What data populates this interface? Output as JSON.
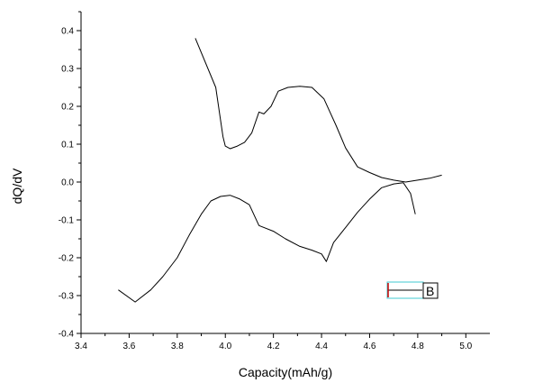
{
  "chart_data": {
    "type": "line",
    "xlabel": "Capacity(mAh/g)",
    "ylabel": "dQ/dV",
    "xlim": [
      3.4,
      5.1
    ],
    "ylim": [
      -0.4,
      0.45
    ],
    "x_ticks": [
      3.4,
      3.6,
      3.8,
      4.0,
      4.2,
      4.4,
      4.6,
      4.8,
      5.0
    ],
    "y_ticks": [
      -0.4,
      -0.3,
      -0.2,
      -0.1,
      0.0,
      0.1,
      0.2,
      0.3,
      0.4
    ],
    "x_tick_labels": [
      "3.4",
      "3.6",
      "3.8",
      "4.0",
      "4.2",
      "4.4",
      "4.6",
      "4.8",
      "5.0"
    ],
    "y_tick_labels": [
      "-0.4",
      "-0.3",
      "-0.2",
      "-0.1",
      "0.0",
      "0.1",
      "0.2",
      "0.3",
      "0.4"
    ],
    "grid": false,
    "legend": {
      "position": "bottom-right",
      "label": "B"
    },
    "colors": {
      "line": "#000000",
      "legend_box": "#40c8d0",
      "legend_marker": "#cc0000"
    },
    "series": [
      {
        "name": "B",
        "points": [
          [
            3.875,
            0.38
          ],
          [
            3.96,
            0.25
          ],
          [
            3.99,
            0.12
          ],
          [
            4.0,
            0.095
          ],
          [
            4.02,
            0.088
          ],
          [
            4.05,
            0.095
          ],
          [
            4.08,
            0.105
          ],
          [
            4.11,
            0.13
          ],
          [
            4.14,
            0.185
          ],
          [
            4.16,
            0.18
          ],
          [
            4.19,
            0.2
          ],
          [
            4.22,
            0.24
          ],
          [
            4.26,
            0.25
          ],
          [
            4.31,
            0.253
          ],
          [
            4.36,
            0.25
          ],
          [
            4.41,
            0.22
          ],
          [
            4.46,
            0.15
          ],
          [
            4.5,
            0.09
          ],
          [
            4.55,
            0.04
          ],
          [
            4.6,
            0.025
          ],
          [
            4.65,
            0.012
          ],
          [
            4.7,
            0.005
          ],
          [
            4.75,
            0.0
          ],
          [
            4.8,
            0.005
          ],
          [
            4.85,
            0.01
          ],
          [
            4.9,
            0.018
          ]
        ]
      },
      {
        "name": "",
        "points": [
          [
            3.555,
            -0.285
          ],
          [
            3.625,
            -0.317
          ],
          [
            3.69,
            -0.285
          ],
          [
            3.74,
            -0.25
          ],
          [
            3.8,
            -0.2
          ],
          [
            3.85,
            -0.14
          ],
          [
            3.9,
            -0.085
          ],
          [
            3.94,
            -0.05
          ],
          [
            3.98,
            -0.038
          ],
          [
            4.02,
            -0.035
          ],
          [
            4.06,
            -0.045
          ],
          [
            4.1,
            -0.06
          ],
          [
            4.14,
            -0.115
          ],
          [
            4.2,
            -0.13
          ],
          [
            4.25,
            -0.15
          ],
          [
            4.31,
            -0.17
          ],
          [
            4.36,
            -0.18
          ],
          [
            4.4,
            -0.19
          ],
          [
            4.42,
            -0.21
          ],
          [
            4.45,
            -0.16
          ],
          [
            4.5,
            -0.12
          ],
          [
            4.55,
            -0.08
          ],
          [
            4.6,
            -0.045
          ],
          [
            4.65,
            -0.015
          ],
          [
            4.7,
            -0.005
          ],
          [
            4.74,
            -0.002
          ],
          [
            4.77,
            -0.03
          ],
          [
            4.79,
            -0.085
          ]
        ]
      }
    ]
  }
}
